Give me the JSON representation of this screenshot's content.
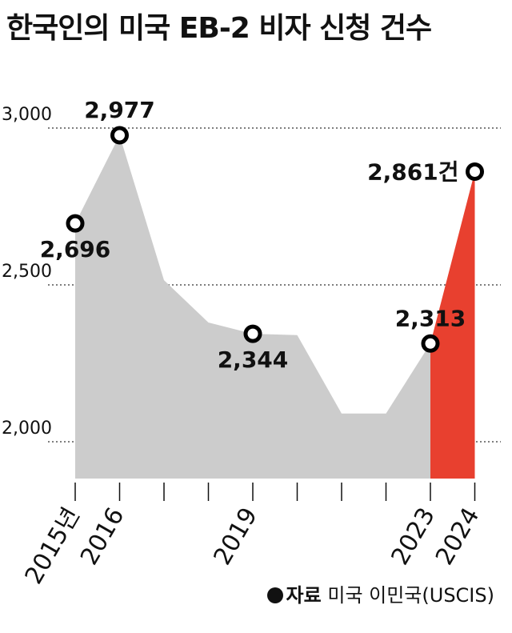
{
  "title": "한국인의 미국 EB-2 비자 신청 건수",
  "source": {
    "label": "자료",
    "text": "미국 이민국(USCIS)"
  },
  "colors": {
    "area_gray": "#cccccc",
    "area_highlight": "#e8402f",
    "gridline": "#333333",
    "text": "#111111"
  },
  "chart_data": {
    "type": "area",
    "x": [
      2015,
      2016,
      2017,
      2018,
      2019,
      2020,
      2021,
      2022,
      2023,
      2024
    ],
    "values": [
      2696,
      2977,
      2515,
      2380,
      2344,
      2340,
      2090,
      2090,
      2313,
      2861
    ],
    "highlight_segment": [
      2023,
      2024
    ],
    "ylim": [
      1880,
      3000
    ],
    "yticks": [
      {
        "value": 3000,
        "label": "3,000"
      },
      {
        "value": 2500,
        "label": "2,500"
      },
      {
        "value": 2000,
        "label": "2,000"
      }
    ],
    "xtick_labels": [
      {
        "x": 2015,
        "label": "2015년"
      },
      {
        "x": 2016,
        "label": "2016"
      },
      {
        "x": 2019,
        "label": "2019"
      },
      {
        "x": 2023,
        "label": "2023"
      },
      {
        "x": 2024,
        "label": "2024"
      }
    ],
    "annotations": [
      {
        "x": 2015,
        "value": 2696,
        "label": "2,696",
        "position": "below"
      },
      {
        "x": 2016,
        "value": 2977,
        "label": "2,977",
        "position": "above"
      },
      {
        "x": 2019,
        "value": 2344,
        "label": "2,344",
        "position": "below"
      },
      {
        "x": 2023,
        "value": 2313,
        "label": "2,313",
        "position": "above"
      },
      {
        "x": 2024,
        "value": 2861,
        "label": "2,861건",
        "position": "left"
      }
    ],
    "grid": "horizontal dotted at tick values"
  }
}
